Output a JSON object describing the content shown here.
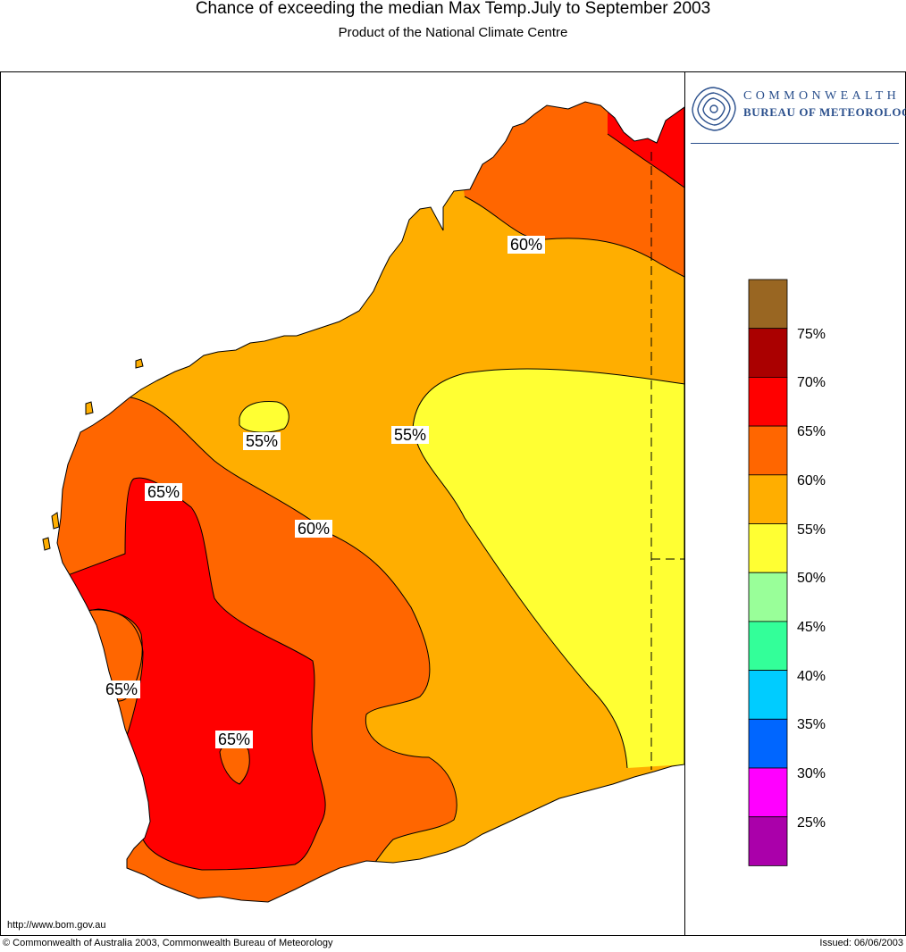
{
  "header": {
    "title": "Chance of exceeding the median Max Temp.July to September 2003",
    "subtitle": "Product of the National Climate Centre"
  },
  "logo": {
    "line1": "COMMONWEALTH",
    "line2": "BUREAU OF METEOROLOGY",
    "icon": "bom-spiral-logo-icon",
    "color": "#2a4f8c"
  },
  "map": {
    "region": "Western Australia",
    "colors": {
      "band_50_55": "#ffff33",
      "band_55_60": "#ffae00",
      "band_60_65": "#ff6600",
      "band_65_70": "#ff0000",
      "background": "#ffffff",
      "outline": "#000000"
    },
    "contour_labels": [
      "60%",
      "55%",
      "55%",
      "65%",
      "60%",
      "65%",
      "65%"
    ]
  },
  "legend": {
    "bands": [
      {
        "label": "",
        "color": "#996622"
      },
      {
        "label": "75%",
        "color": "#aa0000"
      },
      {
        "label": "70%",
        "color": "#ff0000"
      },
      {
        "label": "65%",
        "color": "#ff6600"
      },
      {
        "label": "60%",
        "color": "#ffae00"
      },
      {
        "label": "55%",
        "color": "#ffff33"
      },
      {
        "label": "50%",
        "color": "#99ff99"
      },
      {
        "label": "45%",
        "color": "#33ff99"
      },
      {
        "label": "40%",
        "color": "#00ccff"
      },
      {
        "label": "35%",
        "color": "#0066ff"
      },
      {
        "label": "30%",
        "color": "#ff00ff"
      },
      {
        "label": "25%",
        "color": "#aa00aa"
      }
    ]
  },
  "footer": {
    "url": "http://www.bom.gov.au",
    "copyright": "Commonwealth of Australia 2003, Commonwealth Bureau of Meteorology",
    "copyright_symbol": "©",
    "issued": "Issued: 06/06/2003"
  }
}
